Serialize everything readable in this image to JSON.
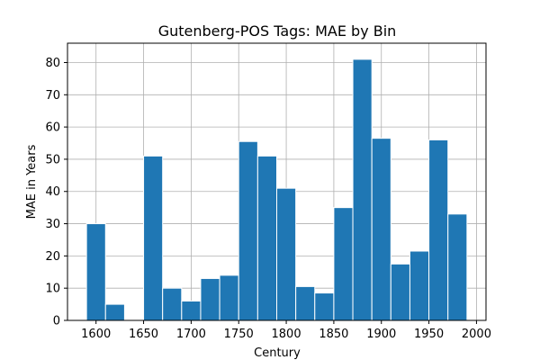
{
  "chart_data": {
    "type": "bar",
    "title": "Gutenberg-POS Tags: MAE by Bin",
    "xlabel": "Century",
    "ylabel": "MAE in Years",
    "bin_width": 20,
    "bins": [
      {
        "x": 1600,
        "value": 30
      },
      {
        "x": 1620,
        "value": 5
      },
      {
        "x": 1640,
        "value": 0
      },
      {
        "x": 1660,
        "value": 51
      },
      {
        "x": 1680,
        "value": 10
      },
      {
        "x": 1700,
        "value": 6
      },
      {
        "x": 1720,
        "value": 13
      },
      {
        "x": 1740,
        "value": 14
      },
      {
        "x": 1760,
        "value": 55.5
      },
      {
        "x": 1780,
        "value": 51
      },
      {
        "x": 1800,
        "value": 41
      },
      {
        "x": 1820,
        "value": 10.5
      },
      {
        "x": 1840,
        "value": 8.5
      },
      {
        "x": 1860,
        "value": 35
      },
      {
        "x": 1880,
        "value": 81
      },
      {
        "x": 1900,
        "value": 56.5
      },
      {
        "x": 1920,
        "value": 17.5
      },
      {
        "x": 1940,
        "value": 21.5
      },
      {
        "x": 1960,
        "value": 56
      },
      {
        "x": 1980,
        "value": 33
      }
    ],
    "xlim": [
      1570,
      2010
    ],
    "ylim": [
      0,
      86
    ],
    "xticks": [
      1600,
      1650,
      1700,
      1750,
      1800,
      1850,
      1900,
      1950,
      2000
    ],
    "yticks": [
      0,
      10,
      20,
      30,
      40,
      50,
      60,
      70,
      80
    ],
    "grid": true,
    "bar_color": "#1f77b4",
    "edge_color": "#ffffff"
  }
}
